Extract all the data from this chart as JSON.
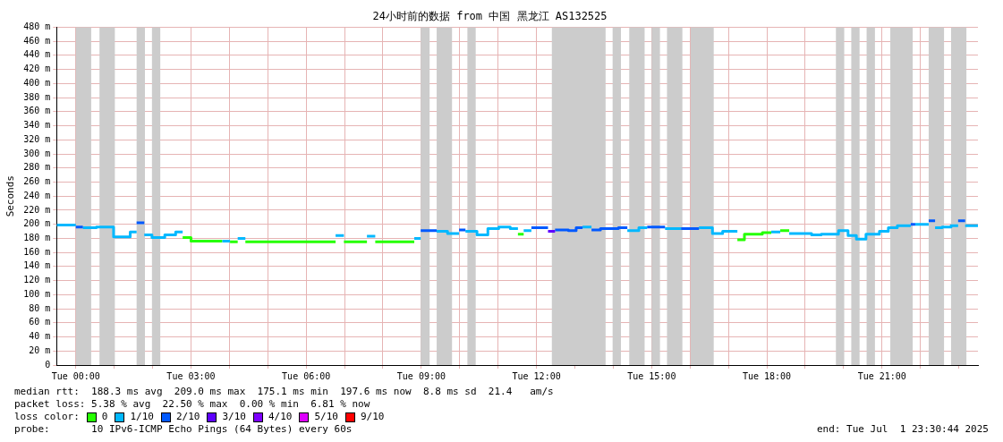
{
  "chart_data": {
    "type": "step",
    "title": "24小时前的数据 from 中国 黑龙江 AS132525",
    "ylabel": "Seconds",
    "legend_title": "loss color:",
    "legend": "bottom",
    "grid": true,
    "marker": "none",
    "xlim": [
      "2025-06-30T23:30",
      "2025-07-01T23:30"
    ],
    "xticks": [
      {
        "value": "2025-07-01T00:00",
        "label": "Tue 00:00"
      },
      {
        "value": "2025-07-01T01:00",
        "label": null
      },
      {
        "value": "2025-07-01T02:00",
        "label": null
      },
      {
        "value": "2025-07-01T03:00",
        "label": "Tue 03:00"
      },
      {
        "value": "2025-07-01T04:00",
        "label": null
      },
      {
        "value": "2025-07-01T05:00",
        "label": null
      },
      {
        "value": "2025-07-01T06:00",
        "label": "Tue 06:00"
      },
      {
        "value": "2025-07-01T07:00",
        "label": null
      },
      {
        "value": "2025-07-01T08:00",
        "label": null
      },
      {
        "value": "2025-07-01T09:00",
        "label": "Tue 09:00"
      },
      {
        "value": "2025-07-01T10:00",
        "label": null
      },
      {
        "value": "2025-07-01T11:00",
        "label": null
      },
      {
        "value": "2025-07-01T12:00",
        "label": "Tue 12:00"
      },
      {
        "value": "2025-07-01T13:00",
        "label": null
      },
      {
        "value": "2025-07-01T14:00",
        "label": null
      },
      {
        "value": "2025-07-01T15:00",
        "label": "Tue 15:00"
      },
      {
        "value": "2025-07-01T16:00",
        "label": null
      },
      {
        "value": "2025-07-01T17:00",
        "label": null
      },
      {
        "value": "2025-07-01T18:00",
        "label": "Tue 18:00"
      },
      {
        "value": "2025-07-01T19:00",
        "label": null
      },
      {
        "value": "2025-07-01T20:00",
        "label": null
      },
      {
        "value": "2025-07-01T21:00",
        "label": "Tue 21:00"
      },
      {
        "value": "2025-07-01T22:00",
        "label": null
      },
      {
        "value": "2025-07-01T23:00",
        "label": null
      }
    ],
    "ylim": [
      0,
      480
    ],
    "yticks": [
      0,
      {
        "value": 20,
        "label": "20 m"
      },
      {
        "value": 40,
        "label": "40 m"
      },
      {
        "value": 60,
        "label": "60 m"
      },
      {
        "value": 80,
        "label": "80 m"
      },
      {
        "value": 100,
        "label": "100 m"
      },
      {
        "value": 120,
        "label": "120 m"
      },
      {
        "value": 140,
        "label": "140 m"
      },
      {
        "value": 160,
        "label": "160 m"
      },
      {
        "value": 180,
        "label": "180 m"
      },
      {
        "value": 200,
        "label": "200 m"
      },
      {
        "value": 220,
        "label": "220 m"
      },
      {
        "value": 240,
        "label": "240 m"
      },
      {
        "value": 260,
        "label": "260 m"
      },
      {
        "value": 280,
        "label": "280 m"
      },
      {
        "value": 300,
        "label": "300 m"
      },
      {
        "value": 320,
        "label": "320 m"
      },
      {
        "value": 340,
        "label": "340 m"
      },
      {
        "value": 360,
        "label": "360 m"
      },
      {
        "value": 380,
        "label": "380 m"
      },
      {
        "value": 400,
        "label": "400 m"
      },
      {
        "value": 420,
        "label": "420 m"
      },
      {
        "value": 440,
        "label": "440 m"
      },
      {
        "value": 460,
        "label": "460 m"
      },
      {
        "value": 480,
        "label": "480 m"
      }
    ],
    "series": [
      {
        "name": "0",
        "color": "#26ff00",
        "x": [
          "2025-07-01T02:47",
          "2025-07-01T03:00",
          "2025-07-01T03:49",
          null,
          "2025-07-01T04:01",
          "2025-07-01T04:13",
          null,
          "2025-07-01T04:25",
          "2025-07-01T06:46",
          null,
          "2025-07-01T06:59",
          "2025-07-01T07:35",
          null,
          "2025-07-01T07:48",
          "2025-07-01T08:49",
          null,
          "2025-07-01T11:31",
          "2025-07-01T11:40",
          null,
          "2025-07-01T17:14",
          "2025-07-01T17:25",
          "2025-07-01T17:53",
          "2025-07-01T18:07",
          null,
          "2025-07-01T18:21",
          "2025-07-01T18:35"
        ],
        "values": [
          181,
          176,
          176,
          null,
          175,
          175,
          null,
          175,
          175,
          null,
          175,
          175,
          null,
          175,
          175,
          null,
          186,
          186,
          null,
          178,
          186,
          188,
          188,
          null,
          191,
          191
        ]
      },
      {
        "name": "1/10",
        "color": "#00b8ff",
        "x": [
          "2025-06-30T23:30",
          "2025-07-01T00:00",
          null,
          "2025-07-01T00:11",
          "2025-07-01T00:32",
          "2025-07-01T00:59",
          "2025-07-01T01:25",
          "2025-07-01T01:35",
          null,
          "2025-07-01T01:47",
          "2025-07-01T01:59",
          "2025-07-01T02:19",
          "2025-07-01T02:36",
          "2025-07-01T02:47",
          null,
          "2025-07-01T03:49",
          "2025-07-01T04:01",
          null,
          "2025-07-01T04:13",
          "2025-07-01T04:25",
          null,
          "2025-07-01T06:46",
          "2025-07-01T06:59",
          null,
          "2025-07-01T07:35",
          "2025-07-01T07:48",
          null,
          "2025-07-01T08:49",
          "2025-07-01T08:59",
          null,
          "2025-07-01T09:24",
          "2025-07-01T09:41",
          "2025-07-01T09:59",
          null,
          "2025-07-01T10:09",
          "2025-07-01T10:27",
          "2025-07-01T10:44",
          "2025-07-01T11:01",
          "2025-07-01T11:19",
          "2025-07-01T11:31",
          null,
          "2025-07-01T11:40",
          "2025-07-01T11:52",
          null,
          "2025-07-01T13:12",
          "2025-07-01T13:26",
          null,
          "2025-07-01T14:22",
          "2025-07-01T14:40",
          "2025-07-01T14:53",
          null,
          "2025-07-01T15:21",
          "2025-07-01T15:46",
          null,
          "2025-07-01T16:14",
          "2025-07-01T16:35",
          "2025-07-01T16:51",
          "2025-07-01T17:14",
          null,
          "2025-07-01T18:07",
          "2025-07-01T18:21",
          null,
          "2025-07-01T18:35",
          "2025-07-01T19:10",
          "2025-07-01T19:25",
          "2025-07-01T19:52",
          "2025-07-01T20:07",
          "2025-07-01T20:20",
          "2025-07-01T20:35",
          "2025-07-01T20:56",
          "2025-07-01T21:10",
          "2025-07-01T21:24",
          "2025-07-01T21:45",
          null,
          "2025-07-01T21:52",
          "2025-07-01T22:13",
          null,
          "2025-07-01T22:23",
          "2025-07-01T22:34",
          "2025-07-01T22:48",
          "2025-07-01T22:59",
          null,
          "2025-07-01T23:10",
          "2025-07-01T23:30"
        ],
        "values": [
          199,
          199,
          null,
          195,
          196,
          182,
          189,
          189,
          null,
          185,
          181,
          185,
          189,
          189,
          null,
          176,
          176,
          null,
          180,
          180,
          null,
          184,
          184,
          null,
          183,
          183,
          null,
          180,
          180,
          null,
          190,
          187,
          187,
          null,
          190,
          185,
          194,
          196,
          194,
          194,
          null,
          191,
          191,
          null,
          196,
          196,
          null,
          191,
          195,
          195,
          null,
          194,
          194,
          null,
          195,
          187,
          190,
          190,
          null,
          189,
          189,
          null,
          187,
          185,
          186,
          191,
          184,
          179,
          186,
          190,
          195,
          198,
          198,
          null,
          200,
          200,
          null,
          195,
          196,
          198,
          198,
          null,
          198,
          198
        ]
      },
      {
        "name": "2/10",
        "color": "#0059ff",
        "x": [
          "2025-07-01T00:00",
          "2025-07-01T00:11",
          null,
          "2025-07-01T01:35",
          "2025-07-01T01:47",
          null,
          "2025-07-01T08:59",
          "2025-07-01T09:24",
          null,
          "2025-07-01T09:59",
          "2025-07-01T10:09",
          null,
          "2025-07-01T11:52",
          "2025-07-01T12:18",
          null,
          "2025-07-01T12:29",
          "2025-07-01T12:50",
          "2025-07-01T13:02",
          "2025-07-01T13:12",
          null,
          "2025-07-01T13:26",
          "2025-07-01T13:40",
          "2025-07-01T14:08",
          "2025-07-01T14:22",
          null,
          "2025-07-01T14:53",
          "2025-07-01T15:21",
          null,
          "2025-07-01T15:46",
          "2025-07-01T16:14",
          null,
          "2025-07-01T21:45",
          "2025-07-01T21:52",
          null,
          "2025-07-01T22:13",
          "2025-07-01T22:23",
          null,
          "2025-07-01T22:59",
          "2025-07-01T23:10"
        ],
        "values": [
          196,
          196,
          null,
          202,
          202,
          null,
          191,
          191,
          null,
          192,
          192,
          null,
          195,
          195,
          null,
          192,
          191,
          195,
          195,
          null,
          192,
          194,
          195,
          195,
          null,
          196,
          196,
          null,
          194,
          194,
          null,
          200,
          200,
          null,
          205,
          205,
          null,
          205,
          205
        ]
      },
      {
        "name": "3/10",
        "color": "#5e00ff",
        "x": [
          "2025-07-01T12:18",
          "2025-07-01T12:29"
        ],
        "values": [
          190,
          190
        ]
      },
      {
        "name": "4/10",
        "color": "#7e00ff"
      },
      {
        "name": "5/10",
        "color": "#dd00ff"
      },
      {
        "name": "9/10",
        "color": "#ff0000"
      }
    ],
    "bands": [
      {
        "axis": "x",
        "from": "2025-07-01T00:00",
        "to": "2025-07-01T00:24",
        "color": "#cccccc"
      },
      {
        "axis": "x",
        "from": "2025-07-01T00:37",
        "to": "2025-07-01T01:01",
        "color": "#cccccc"
      },
      {
        "axis": "x",
        "from": "2025-07-01T01:35",
        "to": "2025-07-01T01:48",
        "color": "#cccccc"
      },
      {
        "axis": "x",
        "from": "2025-07-01T01:59",
        "to": "2025-07-01T02:12",
        "color": "#cccccc"
      },
      {
        "axis": "x",
        "from": "2025-07-01T08:59",
        "to": "2025-07-01T09:13",
        "color": "#cccccc"
      },
      {
        "axis": "x",
        "from": "2025-07-01T09:24",
        "to": "2025-07-01T09:48",
        "color": "#cccccc"
      },
      {
        "axis": "x",
        "from": "2025-07-01T10:12",
        "to": "2025-07-01T10:25",
        "color": "#cccccc"
      },
      {
        "axis": "x",
        "from": "2025-07-01T12:24",
        "to": "2025-07-01T13:48",
        "color": "#cccccc"
      },
      {
        "axis": "x",
        "from": "2025-07-01T13:59",
        "to": "2025-07-01T14:12",
        "color": "#cccccc"
      },
      {
        "axis": "x",
        "from": "2025-07-01T14:25",
        "to": "2025-07-01T14:49",
        "color": "#cccccc"
      },
      {
        "axis": "x",
        "from": "2025-07-01T15:00",
        "to": "2025-07-01T15:13",
        "color": "#cccccc"
      },
      {
        "axis": "x",
        "from": "2025-07-01T15:24",
        "to": "2025-07-01T15:48",
        "color": "#cccccc"
      },
      {
        "axis": "x",
        "from": "2025-07-01T16:01",
        "to": "2025-07-01T16:37",
        "color": "#cccccc"
      },
      {
        "axis": "x",
        "from": "2025-07-01T19:48",
        "to": "2025-07-01T20:01",
        "color": "#cccccc"
      },
      {
        "axis": "x",
        "from": "2025-07-01T20:12",
        "to": "2025-07-01T20:25",
        "color": "#cccccc"
      },
      {
        "axis": "x",
        "from": "2025-07-01T20:36",
        "to": "2025-07-01T20:49",
        "color": "#cccccc"
      },
      {
        "axis": "x",
        "from": "2025-07-01T21:13",
        "to": "2025-07-01T21:48",
        "color": "#cccccc"
      },
      {
        "axis": "x",
        "from": "2025-07-01T22:13",
        "to": "2025-07-01T22:37",
        "color": "#cccccc"
      },
      {
        "axis": "x",
        "from": "2025-07-01T22:48",
        "to": "2025-07-01T23:12",
        "color": "#cccccc"
      }
    ],
    "annotations": [
      "median rtt:  188.3 ms avg  209.0 ms max  175.1 ms min  197.6 ms now  8.8 ms sd  21.4   am/s",
      "packet loss: 5.38 % avg  22.50 % max  0.00 % min  6.81 % now",
      "probe:       10 IPv6-ICMP Echo Pings (64 Bytes) every 60s",
      "end: Tue Jul  1 23:30:44 2025"
    ]
  }
}
